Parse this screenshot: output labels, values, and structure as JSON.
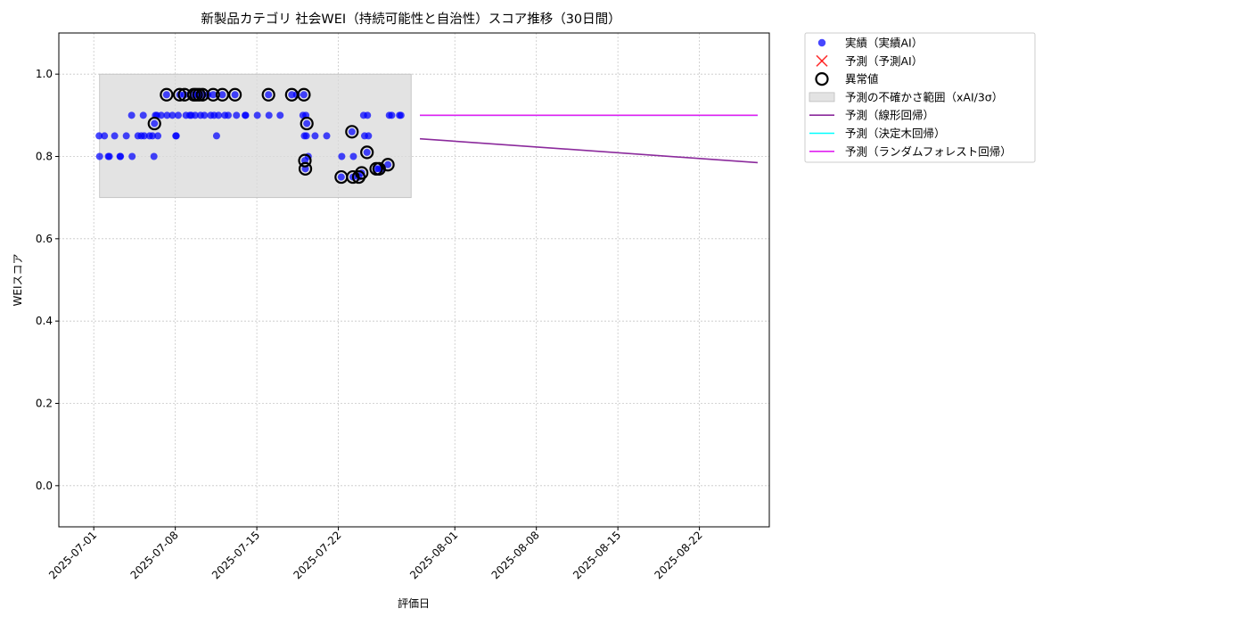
{
  "chart_data": {
    "type": "scatter",
    "title": "新製品カテゴリ 社会WEI（持続可能性と自治性）スコア推移（30日間）",
    "xlabel": "評価日",
    "ylabel": "WEIスコア",
    "xlim": [
      "2025-06-28",
      "2025-08-28"
    ],
    "ylim": [
      -0.1,
      1.1
    ],
    "x_ticks": [
      "2025-07-01",
      "2025-07-08",
      "2025-07-15",
      "2025-07-22",
      "2025-08-01",
      "2025-08-08",
      "2025-08-15",
      "2025-08-22"
    ],
    "y_ticks": [
      "0.0",
      "0.2",
      "0.4",
      "0.6",
      "0.8",
      "1.0"
    ],
    "grid": true,
    "legend_placement": "outside-top-right",
    "colors": {
      "actual": "#0000ff",
      "predicted": "#ff0000",
      "anomaly": "#000000",
      "band": "#d9d9d9",
      "linear": "#8b2a9c",
      "tree": "#00ffff",
      "forest": "#e020f0"
    },
    "legend": [
      {
        "label": "実績（実績AI）",
        "marker": "dot",
        "color": "#0000ff"
      },
      {
        "label": "予測（予測AI）",
        "marker": "x",
        "color": "#ff0000"
      },
      {
        "label": "異常値",
        "marker": "ring",
        "color": "#000000"
      },
      {
        "label": "予測の不確かさ範囲（xAI/3σ）",
        "marker": "patch",
        "color": "#d9d9d9"
      },
      {
        "label": "予測（線形回帰）",
        "marker": "line",
        "color": "#8b2a9c"
      },
      {
        "label": "予測（決定木回帰）",
        "marker": "line",
        "color": "#00ffff"
      },
      {
        "label": "予測（ランダムフォレスト回帰）",
        "marker": "line",
        "color": "#e020f0"
      }
    ],
    "uncertainty_band": {
      "x": [
        "2025-07-01T12:00",
        "2025-07-28T06:00"
      ],
      "y": [
        0.7,
        1.0
      ]
    },
    "actual": [
      [
        "2025-07-01T11:00",
        0.85
      ],
      [
        "2025-07-01T12:00",
        0.8
      ],
      [
        "2025-07-01T22:00",
        0.85
      ],
      [
        "2025-07-02T06:00",
        0.8
      ],
      [
        "2025-07-02T08:00",
        0.8
      ],
      [
        "2025-07-02T19:00",
        0.85
      ],
      [
        "2025-07-03T06:00",
        0.8
      ],
      [
        "2025-07-03T07:00",
        0.8
      ],
      [
        "2025-07-03T19:00",
        0.85
      ],
      [
        "2025-07-04T06:00",
        0.9
      ],
      [
        "2025-07-04T07:00",
        0.8
      ],
      [
        "2025-07-04T19:00",
        0.85
      ],
      [
        "2025-07-05T02:00",
        0.85
      ],
      [
        "2025-07-05T06:00",
        0.9
      ],
      [
        "2025-07-05T08:00",
        0.85
      ],
      [
        "2025-07-05T19:00",
        0.85
      ],
      [
        "2025-07-06T01:00",
        0.85
      ],
      [
        "2025-07-06T04:00",
        0.8
      ],
      [
        "2025-07-06T05:00",
        0.88
      ],
      [
        "2025-07-06T07:00",
        0.9
      ],
      [
        "2025-07-06T10:00",
        0.9
      ],
      [
        "2025-07-06T12:00",
        0.85
      ],
      [
        "2025-07-06T19:00",
        0.9
      ],
      [
        "2025-07-07T06:00",
        0.95
      ],
      [
        "2025-07-07T07:00",
        0.9
      ],
      [
        "2025-07-07T18:00",
        0.9
      ],
      [
        "2025-07-08T01:00",
        0.85
      ],
      [
        "2025-07-08T02:00",
        0.85
      ],
      [
        "2025-07-08T06:00",
        0.9
      ],
      [
        "2025-07-08T09:00",
        0.95
      ],
      [
        "2025-07-08T19:00",
        0.95
      ],
      [
        "2025-07-08T22:00",
        0.9
      ],
      [
        "2025-07-09T06:00",
        0.9
      ],
      [
        "2025-07-09T09:00",
        0.9
      ],
      [
        "2025-07-09T14:00",
        0.95
      ],
      [
        "2025-07-09T17:00",
        0.9
      ],
      [
        "2025-07-09T19:00",
        0.95
      ],
      [
        "2025-07-10T01:00",
        0.95
      ],
      [
        "2025-07-10T04:00",
        0.9
      ],
      [
        "2025-07-10T08:00",
        0.95
      ],
      [
        "2025-07-10T12:00",
        0.9
      ],
      [
        "2025-07-10T19:00",
        0.95
      ],
      [
        "2025-07-11T01:00",
        0.9
      ],
      [
        "2025-07-11T06:00",
        0.95
      ],
      [
        "2025-07-11T08:00",
        0.9
      ],
      [
        "2025-07-11T13:00",
        0.85
      ],
      [
        "2025-07-11T17:00",
        0.9
      ],
      [
        "2025-07-12T01:00",
        0.95
      ],
      [
        "2025-07-12T06:00",
        0.9
      ],
      [
        "2025-07-12T13:00",
        0.9
      ],
      [
        "2025-07-13T03:00",
        0.95
      ],
      [
        "2025-07-13T06:00",
        0.9
      ],
      [
        "2025-07-14T00:00",
        0.9
      ],
      [
        "2025-07-14T01:00",
        0.9
      ],
      [
        "2025-07-15T01:00",
        0.9
      ],
      [
        "2025-07-16T00:00",
        0.95
      ],
      [
        "2025-07-16T01:00",
        0.9
      ],
      [
        "2025-07-17T00:00",
        0.9
      ],
      [
        "2025-07-18T00:00",
        0.95
      ],
      [
        "2025-07-18T10:00",
        0.95
      ],
      [
        "2025-07-18T23:00",
        0.9
      ],
      [
        "2025-07-19T01:00",
        0.95
      ],
      [
        "2025-07-19T02:00",
        0.85
      ],
      [
        "2025-07-19T03:00",
        0.79
      ],
      [
        "2025-07-19T04:00",
        0.77
      ],
      [
        "2025-07-19T05:00",
        0.9
      ],
      [
        "2025-07-19T06:00",
        0.85
      ],
      [
        "2025-07-19T07:00",
        0.88
      ],
      [
        "2025-07-19T10:00",
        0.8
      ],
      [
        "2025-07-20T00:00",
        0.85
      ],
      [
        "2025-07-21T00:00",
        0.85
      ],
      [
        "2025-07-22T06:00",
        0.75
      ],
      [
        "2025-07-22T07:00",
        0.8
      ],
      [
        "2025-07-23T04:00",
        0.86
      ],
      [
        "2025-07-23T06:00",
        0.75
      ],
      [
        "2025-07-23T07:00",
        0.8
      ],
      [
        "2025-07-23T18:00",
        0.75
      ],
      [
        "2025-07-24T00:00",
        0.76
      ],
      [
        "2025-07-24T04:00",
        0.9
      ],
      [
        "2025-07-24T06:00",
        0.85
      ],
      [
        "2025-07-24T11:00",
        0.81
      ],
      [
        "2025-07-24T12:00",
        0.9
      ],
      [
        "2025-07-24T14:00",
        0.85
      ],
      [
        "2025-07-25T06:00",
        0.77
      ],
      [
        "2025-07-25T12:00",
        0.77
      ],
      [
        "2025-07-25T18:00",
        0.77
      ],
      [
        "2025-07-26T06:00",
        0.78
      ],
      [
        "2025-07-26T09:00",
        0.9
      ],
      [
        "2025-07-26T14:00",
        0.9
      ],
      [
        "2025-07-27T06:00",
        0.9
      ],
      [
        "2025-07-27T09:00",
        0.9
      ]
    ],
    "anomalies": [
      [
        "2025-07-06T05:00",
        0.88
      ],
      [
        "2025-07-07T06:00",
        0.95
      ],
      [
        "2025-07-08T09:00",
        0.95
      ],
      [
        "2025-07-08T19:00",
        0.95
      ],
      [
        "2025-07-09T14:00",
        0.95
      ],
      [
        "2025-07-09T19:00",
        0.95
      ],
      [
        "2025-07-10T01:00",
        0.95
      ],
      [
        "2025-07-10T08:00",
        0.95
      ],
      [
        "2025-07-11T06:00",
        0.95
      ],
      [
        "2025-07-12T01:00",
        0.95
      ],
      [
        "2025-07-13T03:00",
        0.95
      ],
      [
        "2025-07-16T00:00",
        0.95
      ],
      [
        "2025-07-18T00:00",
        0.95
      ],
      [
        "2025-07-19T01:00",
        0.95
      ],
      [
        "2025-07-19T03:00",
        0.79
      ],
      [
        "2025-07-19T04:00",
        0.77
      ],
      [
        "2025-07-19T07:00",
        0.88
      ],
      [
        "2025-07-22T06:00",
        0.75
      ],
      [
        "2025-07-23T04:00",
        0.86
      ],
      [
        "2025-07-23T06:00",
        0.75
      ],
      [
        "2025-07-23T18:00",
        0.75
      ],
      [
        "2025-07-24T00:00",
        0.76
      ],
      [
        "2025-07-24T11:00",
        0.81
      ],
      [
        "2025-07-25T06:00",
        0.77
      ],
      [
        "2025-07-25T12:00",
        0.77
      ],
      [
        "2025-07-26T06:00",
        0.78
      ]
    ],
    "predicted": [],
    "linear_regression": {
      "x": [
        "2025-07-29",
        "2025-08-27"
      ],
      "y": [
        0.843,
        0.785
      ]
    },
    "decision_tree_regression": {
      "x": [
        "2025-07-29",
        "2025-08-27"
      ],
      "y": [
        0.9,
        0.9
      ]
    },
    "random_forest_regression": {
      "x": [
        "2025-07-29",
        "2025-08-27"
      ],
      "y": [
        0.9,
        0.9
      ]
    }
  }
}
